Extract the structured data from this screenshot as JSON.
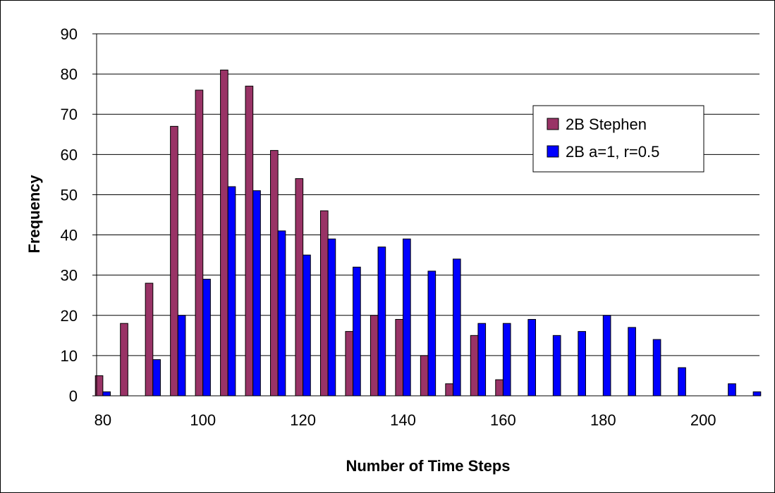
{
  "chart_data": {
    "type": "bar",
    "xlabel": "Number of Time Steps",
    "ylabel": "Frequency",
    "ylim": [
      0,
      90
    ],
    "yticks": [
      0,
      10,
      20,
      30,
      40,
      50,
      60,
      70,
      80,
      90
    ],
    "xticks": [
      80,
      100,
      120,
      140,
      160,
      180,
      200
    ],
    "xlim": [
      78.75,
      211.25
    ],
    "bin_width": 5,
    "grid": "horizontal",
    "legend_position": "right",
    "categories": [
      80,
      85,
      90,
      95,
      100,
      105,
      110,
      115,
      120,
      125,
      130,
      135,
      140,
      145,
      150,
      155,
      160,
      165,
      170,
      175,
      180,
      185,
      190,
      195,
      200,
      205,
      210
    ],
    "series": [
      {
        "name": "2B Stephen",
        "color": "#993366",
        "values": [
          5,
          18,
          28,
          67,
          76,
          81,
          77,
          61,
          54,
          46,
          16,
          20,
          19,
          10,
          3,
          15,
          4,
          0,
          0,
          0,
          0,
          0,
          0,
          0,
          0,
          0,
          0
        ]
      },
      {
        "name": "2B a=1, r=0.5",
        "color": "#0000FF",
        "values": [
          1,
          0,
          9,
          20,
          29,
          52,
          51,
          41,
          35,
          39,
          32,
          37,
          39,
          31,
          34,
          18,
          18,
          19,
          15,
          16,
          20,
          17,
          14,
          7,
          0,
          3,
          1
        ]
      }
    ]
  }
}
